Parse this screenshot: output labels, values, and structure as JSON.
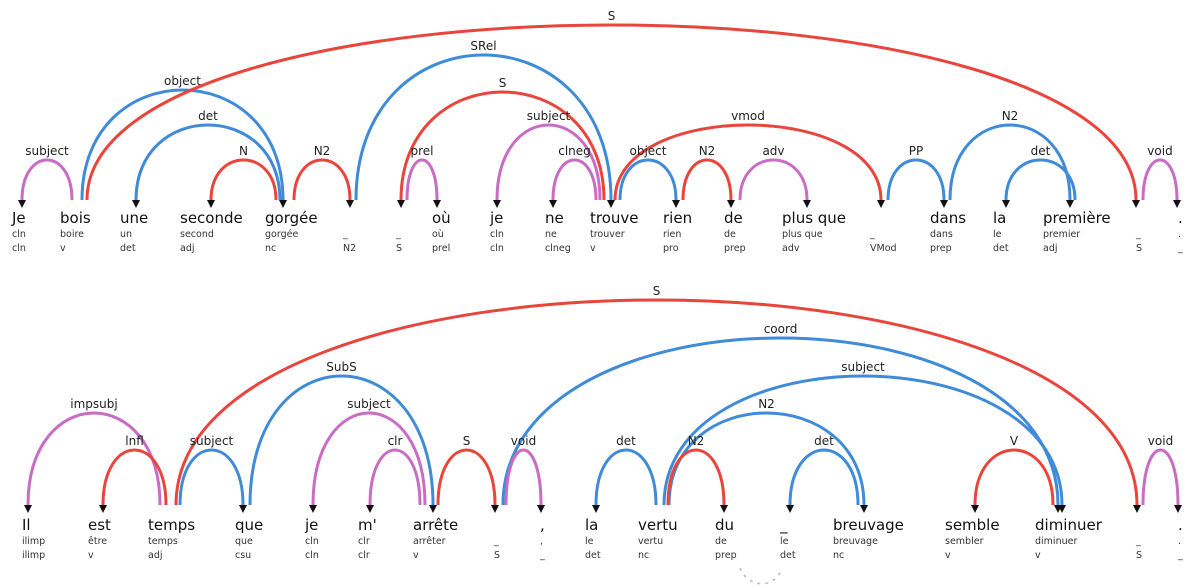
{
  "colors": {
    "red": "#e8453c",
    "blue": "#3f8bd8",
    "pink": "#c86cc4",
    "arrow": "#111111"
  },
  "rows": [
    {
      "words": [
        {
          "form": "Je",
          "lemma": "cln",
          "pos": "cln"
        },
        {
          "form": "bois",
          "lemma": "boire",
          "pos": "v"
        },
        {
          "form": "une",
          "lemma": "un",
          "pos": "det"
        },
        {
          "form": "seconde",
          "lemma": "second",
          "pos": "adj"
        },
        {
          "form": "gorgée",
          "lemma": "gorgée",
          "pos": "nc"
        },
        {
          "form": "",
          "lemma": "_",
          "pos": "N2"
        },
        {
          "form": "",
          "lemma": "_",
          "pos": "S"
        },
        {
          "form": "où",
          "lemma": "où",
          "pos": "prel"
        },
        {
          "form": "je",
          "lemma": "cln",
          "pos": "cln"
        },
        {
          "form": "ne",
          "lemma": "ne",
          "pos": "clneg"
        },
        {
          "form": "trouve",
          "lemma": "trouver",
          "pos": "v"
        },
        {
          "form": "rien",
          "lemma": "rien",
          "pos": "pro"
        },
        {
          "form": "de",
          "lemma": "de",
          "pos": "prep"
        },
        {
          "form": "plus que",
          "lemma": "plus que",
          "pos": "adv"
        },
        {
          "form": "",
          "lemma": "_",
          "pos": "VMod"
        },
        {
          "form": "dans",
          "lemma": "dans",
          "pos": "prep"
        },
        {
          "form": "la",
          "lemma": "le",
          "pos": "det"
        },
        {
          "form": "première",
          "lemma": "premier",
          "pos": "adj"
        },
        {
          "form": "",
          "lemma": "_",
          "pos": "S"
        },
        {
          "form": ".",
          "lemma": ".",
          "pos": "_"
        }
      ],
      "arcs": [
        {
          "label": "subject",
          "head": 1,
          "dep": 0,
          "color": "pink"
        },
        {
          "label": "object",
          "head": 1,
          "dep": 4,
          "color": "blue"
        },
        {
          "label": "S",
          "head": 1,
          "dep": 18,
          "color": "red"
        },
        {
          "label": "det",
          "head": 4,
          "dep": 2,
          "color": "blue"
        },
        {
          "label": "N",
          "head": 4,
          "dep": 3,
          "color": "red"
        },
        {
          "label": "N2",
          "head": 4,
          "dep": 5,
          "color": "red"
        },
        {
          "label": "SRel",
          "head": 5,
          "dep": 10,
          "color": "blue"
        },
        {
          "label": "S",
          "head": 10,
          "dep": 6,
          "color": "red"
        },
        {
          "label": "prel",
          "head": 6,
          "dep": 7,
          "color": "pink"
        },
        {
          "label": "subject",
          "head": 10,
          "dep": 8,
          "color": "pink"
        },
        {
          "label": "clneg",
          "head": 10,
          "dep": 9,
          "color": "pink"
        },
        {
          "label": "vmod",
          "head": 10,
          "dep": 14,
          "color": "red"
        },
        {
          "label": "object",
          "head": 10,
          "dep": 11,
          "color": "blue"
        },
        {
          "label": "N2",
          "head": 11,
          "dep": 12,
          "color": "red"
        },
        {
          "label": "adv",
          "head": 12,
          "dep": 13,
          "color": "pink"
        },
        {
          "label": "PP",
          "head": 14,
          "dep": 15,
          "color": "blue"
        },
        {
          "label": "N2",
          "head": 15,
          "dep": 17,
          "color": "blue"
        },
        {
          "label": "det",
          "head": 17,
          "dep": 16,
          "color": "blue"
        },
        {
          "label": "void",
          "head": 18,
          "dep": 19,
          "color": "pink"
        }
      ]
    },
    {
      "words": [
        {
          "form": "Il",
          "lemma": "ilimp",
          "pos": "ilimp"
        },
        {
          "form": "est",
          "lemma": "être",
          "pos": "v"
        },
        {
          "form": "temps",
          "lemma": "temps",
          "pos": "adj"
        },
        {
          "form": "que",
          "lemma": "que",
          "pos": "csu"
        },
        {
          "form": "je",
          "lemma": "cln",
          "pos": "cln"
        },
        {
          "form": "m'",
          "lemma": "clr",
          "pos": "clr"
        },
        {
          "form": "arrête",
          "lemma": "arrêter",
          "pos": "v"
        },
        {
          "form": "",
          "lemma": "_",
          "pos": "S"
        },
        {
          "form": ",",
          "lemma": ",",
          "pos": "_"
        },
        {
          "form": "la",
          "lemma": "le",
          "pos": "det"
        },
        {
          "form": "vertu",
          "lemma": "vertu",
          "pos": "nc"
        },
        {
          "form": "du",
          "lemma": "de",
          "pos": "prep"
        },
        {
          "form": "_",
          "lemma": "le",
          "pos": "det"
        },
        {
          "form": "breuvage",
          "lemma": "breuvage",
          "pos": "nc"
        },
        {
          "form": "semble",
          "lemma": "sembler",
          "pos": "v"
        },
        {
          "form": "diminuer",
          "lemma": "diminuer",
          "pos": "v"
        },
        {
          "form": "",
          "lemma": "_",
          "pos": "S"
        },
        {
          "form": ".",
          "lemma": ".",
          "pos": "_"
        }
      ],
      "arcs": [
        {
          "label": "S",
          "head": 2,
          "dep": 16,
          "color": "red"
        },
        {
          "label": "coord",
          "head": 7,
          "dep": 15,
          "color": "blue"
        },
        {
          "label": "subject",
          "head": 10,
          "dep": 15,
          "color": "blue"
        },
        {
          "label": "N2",
          "head": 10,
          "dep": 13,
          "color": "blue"
        },
        {
          "label": "impsubj",
          "head": 2,
          "dep": 0,
          "color": "pink"
        },
        {
          "label": "lnfl",
          "head": 2,
          "dep": 1,
          "color": "red"
        },
        {
          "label": "subject",
          "head": 2,
          "dep": 3,
          "color": "blue"
        },
        {
          "label": "SubS",
          "head": 3,
          "dep": 6,
          "color": "blue"
        },
        {
          "label": "subject",
          "head": 6,
          "dep": 4,
          "color": "pink"
        },
        {
          "label": "clr",
          "head": 6,
          "dep": 5,
          "color": "pink"
        },
        {
          "label": "S",
          "head": 6,
          "dep": 7,
          "color": "red"
        },
        {
          "label": "void",
          "head": 7,
          "dep": 8,
          "color": "pink"
        },
        {
          "label": "det",
          "head": 10,
          "dep": 9,
          "color": "blue"
        },
        {
          "label": "N2",
          "head": 10,
          "dep": 11,
          "color": "red"
        },
        {
          "label": "det",
          "head": 13,
          "dep": 12,
          "color": "blue"
        },
        {
          "label": "V",
          "head": 15,
          "dep": 14,
          "color": "red"
        },
        {
          "label": "void",
          "head": 16,
          "dep": 17,
          "color": "pink"
        }
      ]
    }
  ]
}
